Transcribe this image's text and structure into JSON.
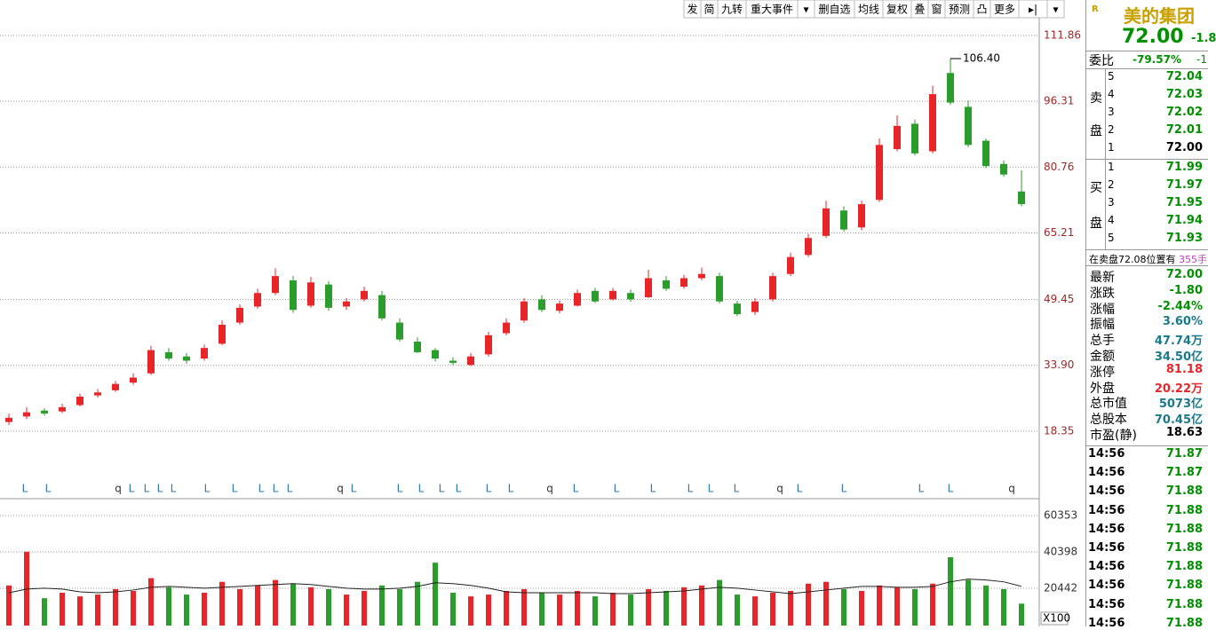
{
  "toolbar": [
    "发",
    "简",
    "九转",
    "重大事件",
    "▾",
    "删自选",
    "均线",
    "复权",
    "叠",
    "窗",
    "预测",
    "凸",
    "更多",
    "▸|",
    "▾"
  ],
  "chart_data": [
    {
      "type": "candlestick",
      "up_color": "#e8262a",
      "down_color": "#2a9d2a",
      "open": [
        20.5,
        21.8,
        23.2,
        23,
        24.5,
        26.8,
        28,
        29.8,
        32,
        37,
        36,
        35.5,
        39,
        44,
        47.8,
        51,
        54,
        48,
        53,
        47.8,
        49.5,
        50.5,
        44,
        39.5,
        37.5,
        35,
        34,
        36.5,
        41.5,
        44.5,
        49.5,
        46.8,
        48,
        51.5,
        49.5,
        51,
        50,
        54,
        52.5,
        54.5,
        55,
        48.5,
        46.5,
        49.5,
        55.5,
        60,
        64.5,
        70.5,
        66.5,
        73,
        85,
        91,
        84.5,
        103,
        95,
        87,
        81.5,
        75
      ],
      "high": [
        22.5,
        24,
        23.8,
        24.8,
        27.2,
        28.3,
        30.2,
        32,
        38.5,
        38,
        36.8,
        38.8,
        44.5,
        48.3,
        52,
        56.8,
        55,
        54.8,
        53.8,
        49.8,
        52.5,
        51.5,
        45,
        40.5,
        38,
        35.8,
        36.8,
        41.8,
        45,
        49.8,
        50.5,
        49.2,
        51.8,
        52.2,
        52.2,
        51.8,
        56.5,
        55,
        55.3,
        57,
        55.8,
        49.2,
        49.8,
        55.8,
        60.5,
        65,
        72.8,
        71.5,
        72.8,
        87.5,
        93,
        92,
        100,
        106.4,
        96.5,
        87.5,
        82.3,
        80
      ],
      "low": [
        19.8,
        21.2,
        22,
        22.6,
        24.2,
        26.3,
        27.6,
        29.3,
        31.6,
        35,
        34.3,
        35,
        38.7,
        43.5,
        47.3,
        50.5,
        46.3,
        47.5,
        46.8,
        47,
        49,
        44.5,
        39.5,
        36.8,
        34.8,
        33.9,
        33.7,
        36,
        41,
        44,
        46.5,
        46.2,
        47.8,
        48.6,
        49.2,
        48.9,
        49.8,
        51.5,
        52,
        54,
        48.5,
        45.5,
        45.8,
        49,
        55,
        59.5,
        64,
        65.5,
        65.8,
        72.5,
        84.5,
        83.5,
        84,
        95.5,
        85.5,
        80.5,
        78.5,
        71.5
      ],
      "close": [
        21.5,
        22.8,
        22.5,
        24,
        26.5,
        27.5,
        29.5,
        31,
        37.5,
        35.5,
        35,
        38,
        43.5,
        47.5,
        51,
        55,
        47,
        53.5,
        47.5,
        49,
        51.5,
        45,
        40,
        37,
        35.5,
        34.5,
        36,
        41,
        44,
        49,
        47,
        48.5,
        51,
        49,
        51.5,
        49.5,
        54.5,
        52,
        54.5,
        55.5,
        49,
        46,
        49,
        55,
        59.5,
        64,
        71,
        66,
        72,
        86,
        90.5,
        84,
        98,
        96,
        86,
        81,
        79,
        72
      ],
      "ylim": [
        2.8,
        115.64
      ],
      "yticks": [
        18.35,
        {
          "value": 33.9,
          "label": "33.90"
        },
        49.45,
        65.21,
        80.76,
        96.31,
        111.86
      ],
      "grid": true,
      "annotation": "106.40",
      "markers": [
        "L",
        "L",
        "q",
        "L",
        "L",
        "L",
        "L",
        "L",
        "L",
        "L",
        "L",
        "L",
        "q",
        "L",
        "L",
        "L",
        "L",
        "L",
        "L",
        "L",
        "q",
        "L",
        "L",
        "L",
        "L",
        "L",
        "L",
        "q",
        "L",
        "L",
        "L",
        "L",
        "q"
      ]
    },
    {
      "type": "bar",
      "unit": "X100",
      "ma_color": "#222222",
      "values": [
        22000,
        40500,
        15000,
        18000,
        16000,
        17000,
        20000,
        19000,
        26000,
        21000,
        17000,
        18000,
        24000,
        20000,
        22000,
        25000,
        23000,
        21000,
        20000,
        17000,
        19000,
        22000,
        20000,
        24000,
        34500,
        18000,
        16000,
        17000,
        19000,
        20000,
        18000,
        17000,
        19000,
        16000,
        18000,
        17000,
        20000,
        19000,
        21000,
        22000,
        25000,
        17000,
        16000,
        18000,
        19000,
        23000,
        24000,
        20000,
        19000,
        22000,
        21000,
        20000,
        23000,
        37500,
        25000,
        22000,
        20000,
        12000
      ],
      "ma": [
        18000,
        20000,
        20500,
        20000,
        18500,
        18000,
        18500,
        19500,
        21000,
        21500,
        21000,
        20500,
        21000,
        21500,
        22000,
        22500,
        23000,
        22500,
        21500,
        20500,
        20000,
        20000,
        20500,
        21500,
        23500,
        23000,
        22000,
        20500,
        18500,
        18000,
        18000,
        18000,
        18000,
        18000,
        17500,
        17500,
        18000,
        18500,
        19000,
        20000,
        21000,
        20500,
        19500,
        18500,
        17500,
        18500,
        19500,
        20500,
        21500,
        21500,
        21000,
        21000,
        21500,
        24000,
        25500,
        25000,
        24000,
        21500
      ],
      "ylim": [
        0,
        68140
      ],
      "yticks": [
        20442,
        40398,
        60353
      ]
    }
  ],
  "quote": {
    "badge": "R",
    "name": "美的集团",
    "price": "72.00",
    "change": "-1.8",
    "ratio_label": "委比",
    "ratio": "-79.57%",
    "ratio_diff": "-1",
    "sell_label": [
      "卖",
      "盘"
    ],
    "buy_label": [
      "买",
      "盘"
    ],
    "sell": [
      [
        "5",
        "72.04"
      ],
      [
        "4",
        "72.03"
      ],
      [
        "3",
        "72.02"
      ],
      [
        "2",
        "72.01"
      ],
      [
        "1",
        "72.00"
      ]
    ],
    "buy": [
      [
        "1",
        "71.99"
      ],
      [
        "2",
        "71.97"
      ],
      [
        "3",
        "71.95"
      ],
      [
        "4",
        "71.94"
      ],
      [
        "5",
        "71.93"
      ]
    ],
    "notice": "在卖盘72.08位置有",
    "notice_qty": "355手",
    "stats": [
      [
        "最新",
        "72.00"
      ],
      [
        "涨跌",
        "-1.80"
      ],
      [
        "涨幅",
        "-2.44%"
      ],
      [
        "振幅",
        "3.60%"
      ],
      [
        "总手",
        "47.74万"
      ],
      [
        "金额",
        "34.50亿"
      ],
      [
        "涨停",
        "81.18"
      ],
      [
        "外盘",
        "20.22万"
      ],
      [
        "总市值",
        "5073亿"
      ],
      [
        "总股本",
        "70.45亿"
      ],
      [
        "市盈(静)",
        "18.63"
      ]
    ],
    "ticks": [
      [
        "14:56",
        "71.87"
      ],
      [
        "14:56",
        "71.87"
      ],
      [
        "14:56",
        "71.88"
      ],
      [
        "14:56",
        "71.88"
      ],
      [
        "14:56",
        "71.88"
      ],
      [
        "14:56",
        "71.88"
      ],
      [
        "14:56",
        "71.88"
      ],
      [
        "14:56",
        "71.88"
      ],
      [
        "14:56",
        "71.88"
      ],
      [
        "14:56",
        "71.88"
      ]
    ]
  }
}
